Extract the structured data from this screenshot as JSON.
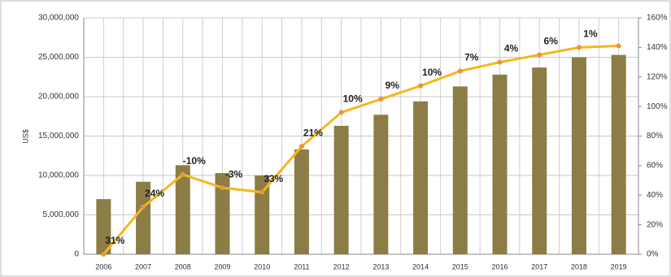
{
  "chart_data": {
    "type": "bar-line",
    "y_label": "US$",
    "categories": [
      "2006",
      "2007",
      "2008",
      "2009",
      "2010",
      "2011",
      "2012",
      "2013",
      "2014",
      "2015",
      "2016",
      "2017",
      "2018",
      "2019"
    ],
    "series": [
      {
        "type": "bar",
        "color": "#8b7d45",
        "axis": "y",
        "values": [
          7000000,
          9200000,
          11300000,
          10300000,
          10000000,
          13300000,
          16300000,
          17700000,
          19400000,
          21300000,
          22800000,
          23700000,
          25000000,
          25300000
        ]
      },
      {
        "type": "line",
        "color": "#f4b81c",
        "marker_color": "#e8963a",
        "axis": "y2",
        "values": [
          0,
          32,
          54,
          45,
          42,
          73,
          96,
          105,
          114,
          124,
          130,
          135,
          140,
          141
        ]
      }
    ],
    "annotations": [
      "31%",
      "24%",
      "-10%",
      "-3%",
      "33%",
      "21%",
      "10%",
      "9%",
      "10%",
      "7%",
      "4%",
      "6%",
      "1%",
      null
    ],
    "ylim": [
      0,
      30000000
    ],
    "yticks": [
      0,
      {
        "value": 5000000,
        "label": "5,000,000"
      },
      {
        "value": 10000000,
        "label": "10,000,000"
      },
      {
        "value": 15000000,
        "label": "15,000,000"
      },
      {
        "value": 20000000,
        "label": "20,000,000"
      },
      {
        "value": 25000000,
        "label": "25,000,000"
      },
      {
        "value": 30000000,
        "label": "30,000,000"
      }
    ],
    "y2lim": [
      0,
      160
    ],
    "y2ticks": [
      {
        "value": 0,
        "label": "0%"
      },
      {
        "value": 20,
        "label": "20%"
      },
      {
        "value": 40,
        "label": "40%"
      },
      {
        "value": 60,
        "label": "60%"
      },
      {
        "value": 80,
        "label": "80%"
      },
      {
        "value": 100,
        "label": "100%"
      },
      {
        "value": 120,
        "label": "120%"
      },
      {
        "value": 140,
        "label": "140%"
      },
      {
        "value": 160,
        "label": "160%"
      }
    ],
    "grid": true
  }
}
